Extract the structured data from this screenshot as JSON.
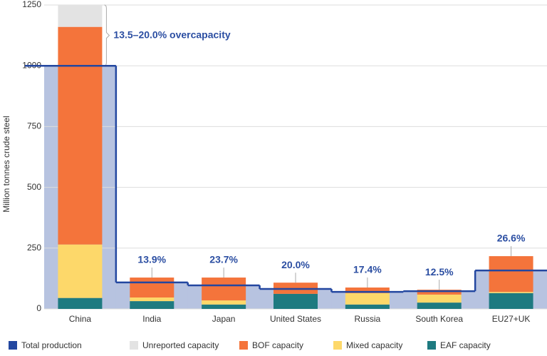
{
  "chart_data": {
    "type": "stacked-bar",
    "y_label": "Million tonnes crude steel",
    "categories": [
      "China",
      "India",
      "Japan",
      "United States",
      "Russia",
      "South Korea",
      "EU27+UK"
    ],
    "production": {
      "name": "Total production",
      "color": "#2347a0",
      "fill": "#b7c3e0",
      "values": [
        1000,
        109,
        97,
        82,
        70,
        73,
        158
      ]
    },
    "series": [
      {
        "name": "Unreported capacity",
        "color": "#e3e3e3",
        "values": [
          90,
          0,
          0,
          0,
          0,
          0,
          0
        ]
      },
      {
        "name": "BOF capacity",
        "color": "#f4743b",
        "values": [
          895,
          82,
          94,
          46,
          23,
          20,
          147
        ]
      },
      {
        "name": "Mixed capacity",
        "color": "#fdd86a",
        "values": [
          220,
          15,
          17,
          0,
          47,
          33,
          5
        ]
      },
      {
        "name": "EAF capacity",
        "color": "#1e7a80",
        "values": [
          45,
          32,
          18,
          62,
          18,
          26,
          65
        ]
      }
    ],
    "overcapacity_labels": [
      "13.5–20.0% overcapacity",
      "13.9%",
      "23.7%",
      "20.0%",
      "17.4%",
      "12.5%",
      "26.6%"
    ],
    "ylim": [
      0,
      1250
    ],
    "yticks": [
      0,
      250,
      500,
      750,
      1000,
      1250
    ],
    "grid": true
  }
}
